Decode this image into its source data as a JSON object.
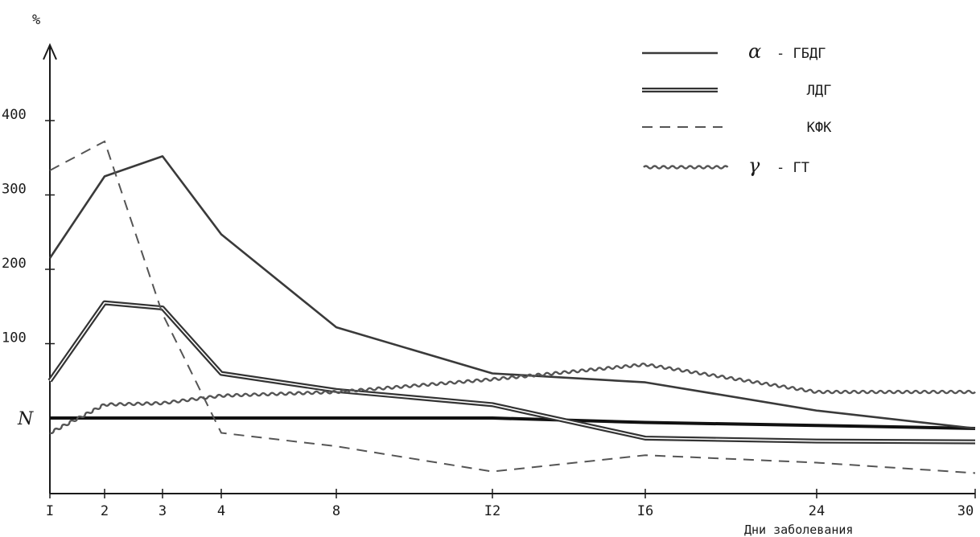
{
  "chart_data": {
    "type": "line",
    "ylabel": "%",
    "xlabel": "Дни заболевания",
    "x_categories": [
      "I",
      "2",
      "3",
      "4",
      "8",
      "I2",
      "I6",
      "24",
      "30"
    ],
    "y_ticks": [
      100,
      200,
      300,
      400
    ],
    "baseline_label": "N",
    "baseline_value": 0,
    "ylim": [
      -100,
      480
    ],
    "legend_position": "top-right",
    "series": [
      {
        "name": "α - ГБДГ",
        "legend_symbol": "α",
        "legend_label": "- ГБДГ",
        "style": "solid",
        "color": "#3a3a3a",
        "values": [
          215,
          325,
          352,
          247,
          122,
          60,
          48,
          10,
          -14
        ]
      },
      {
        "name": "ЛДГ",
        "legend_symbol": "",
        "legend_label": "ЛДГ",
        "style": "double",
        "color": "#333333",
        "values": [
          50,
          155,
          148,
          60,
          37,
          18,
          -27,
          -31,
          -32
        ]
      },
      {
        "name": "КФК",
        "legend_symbol": "",
        "legend_label": "КФК",
        "style": "dashed",
        "color": "#555555",
        "values": [
          333,
          372,
          140,
          -20,
          -38,
          -72,
          -50,
          -60,
          -74
        ]
      },
      {
        "name": "γ - ГТ",
        "legend_symbol": "γ",
        "legend_label": "- ГТ",
        "style": "wavy",
        "color": "#555555",
        "values": [
          -20,
          18,
          20,
          30,
          35,
          52,
          72,
          35,
          35
        ]
      }
    ],
    "n_line": {
      "style": "bold",
      "color": "#111111",
      "values": [
        0,
        0,
        0,
        0,
        0,
        0,
        -6,
        -10,
        -14
      ]
    }
  }
}
